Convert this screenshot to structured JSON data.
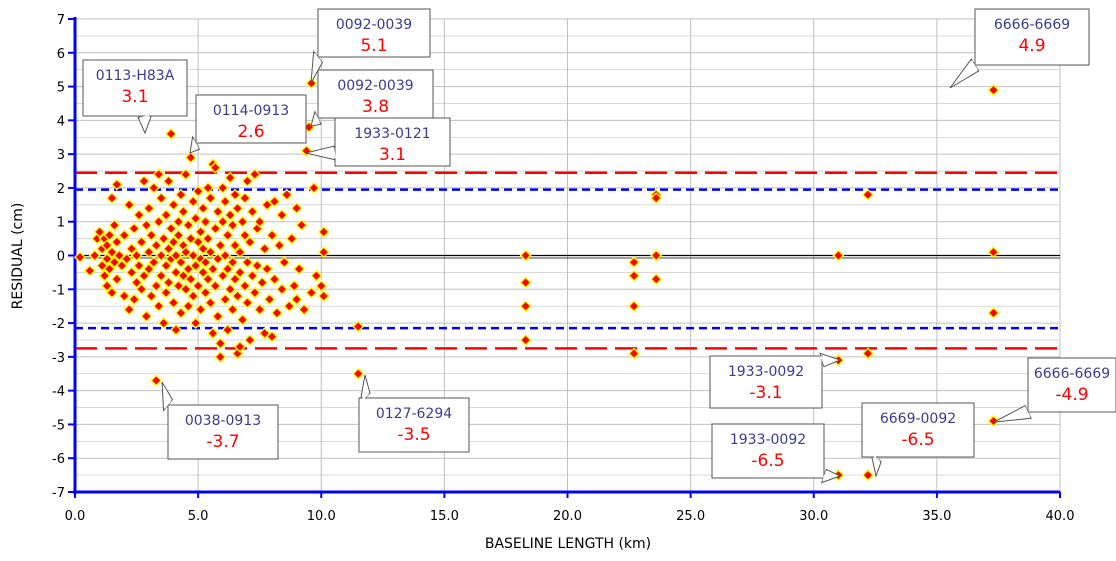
{
  "chart_data": {
    "type": "scatter",
    "xlabel": "BASELINE LENGTH (km)",
    "ylabel": "RESIDUAL (cm)",
    "xlim": [
      0,
      40
    ],
    "ylim": [
      -7,
      7
    ],
    "xticks": [
      "0.0",
      "5.0",
      "10.0",
      "15.0",
      "20.0",
      "25.0",
      "30.0",
      "35.0",
      "40.0"
    ],
    "yticks": [
      "7",
      "6",
      "5",
      "4",
      "3",
      "2",
      "1",
      "0",
      "-1",
      "-2",
      "-3",
      "-4",
      "-5",
      "-6",
      "-7"
    ],
    "grid": true,
    "colors": {
      "marker_fill": "#ff0000",
      "marker_edge": "#ffff00",
      "axis": "#0000ff",
      "red_band": "#ff0000",
      "blue_band": "#0000ff",
      "zero_line": "#000000",
      "grid": "#c0c0c0"
    },
    "reference_lines": [
      {
        "y": 2.45,
        "style": "long-dash",
        "color": "#ff0000"
      },
      {
        "y": -2.75,
        "style": "long-dash",
        "color": "#ff0000"
      },
      {
        "y": 1.95,
        "style": "short-dash",
        "color": "#0000ff"
      },
      {
        "y": -2.15,
        "style": "short-dash",
        "color": "#0000ff"
      },
      {
        "y": 0,
        "style": "solid",
        "color": "#000000"
      }
    ],
    "points": [
      [
        0.2,
        -0.05
      ],
      [
        0.6,
        -0.45
      ],
      [
        0.8,
        0.0
      ],
      [
        0.9,
        0.5
      ],
      [
        1.0,
        0.7
      ],
      [
        1.1,
        0.2
      ],
      [
        1.1,
        -0.3
      ],
      [
        1.2,
        0.5
      ],
      [
        1.2,
        -0.6
      ],
      [
        1.3,
        0.3
      ],
      [
        1.3,
        -0.1
      ],
      [
        1.3,
        -0.9
      ],
      [
        1.4,
        0.6
      ],
      [
        1.4,
        -0.4
      ],
      [
        1.5,
        1.7
      ],
      [
        1.5,
        0.1
      ],
      [
        1.5,
        -1.1
      ],
      [
        1.6,
        0.9
      ],
      [
        1.6,
        -0.2
      ],
      [
        1.7,
        2.1
      ],
      [
        1.7,
        0.4
      ],
      [
        1.7,
        -0.7
      ],
      [
        1.8,
        0.0
      ],
      [
        1.9,
        -0.3
      ],
      [
        2.0,
        -1.2
      ],
      [
        2.0,
        0.6
      ],
      [
        2.1,
        -0.1
      ],
      [
        2.2,
        1.5
      ],
      [
        2.2,
        -1.6
      ],
      [
        2.3,
        0.2
      ],
      [
        2.3,
        -0.5
      ],
      [
        2.4,
        -1.3
      ],
      [
        2.4,
        0.8
      ],
      [
        2.5,
        0.0
      ],
      [
        2.5,
        -0.8
      ],
      [
        2.6,
        1.2
      ],
      [
        2.6,
        -0.3
      ],
      [
        2.7,
        -1.0
      ],
      [
        2.7,
        0.4
      ],
      [
        2.8,
        -0.6
      ],
      [
        2.8,
        2.2
      ],
      [
        2.9,
        0.9
      ],
      [
        2.9,
        -1.8
      ],
      [
        3.0,
        0.1
      ],
      [
        3.0,
        -0.4
      ],
      [
        3.0,
        1.4
      ],
      [
        3.1,
        -1.2
      ],
      [
        3.1,
        0.6
      ],
      [
        3.2,
        -0.2
      ],
      [
        3.2,
        2.0
      ],
      [
        3.3,
        -0.9
      ],
      [
        3.3,
        0.3
      ],
      [
        3.3,
        -3.7
      ],
      [
        3.4,
        1.0
      ],
      [
        3.4,
        -1.5
      ],
      [
        3.4,
        2.4
      ],
      [
        3.5,
        0.0
      ],
      [
        3.5,
        -0.6
      ],
      [
        3.5,
        1.7
      ],
      [
        3.6,
        -2.0
      ],
      [
        3.6,
        0.5
      ],
      [
        3.7,
        -0.3
      ],
      [
        3.7,
        1.2
      ],
      [
        3.7,
        -1.1
      ],
      [
        3.8,
        0.2
      ],
      [
        3.8,
        -0.8
      ],
      [
        3.8,
        2.2
      ],
      [
        3.9,
        3.6
      ],
      [
        3.9,
        -0.1
      ],
      [
        3.9,
        0.8
      ],
      [
        4.0,
        -1.4
      ],
      [
        4.0,
        0.4
      ],
      [
        4.0,
        1.5
      ],
      [
        4.1,
        -0.5
      ],
      [
        4.1,
        -2.2
      ],
      [
        4.1,
        0.0
      ],
      [
        4.2,
        1.0
      ],
      [
        4.2,
        -0.9
      ],
      [
        4.2,
        0.6
      ],
      [
        4.3,
        -0.2
      ],
      [
        4.3,
        1.8
      ],
      [
        4.3,
        -1.7
      ],
      [
        4.4,
        0.3
      ],
      [
        4.4,
        -0.6
      ],
      [
        4.4,
        1.3
      ],
      [
        4.5,
        -1.0
      ],
      [
        4.5,
        0.1
      ],
      [
        4.5,
        2.4
      ],
      [
        4.6,
        -0.4
      ],
      [
        4.6,
        0.9
      ],
      [
        4.6,
        -1.5
      ],
      [
        4.7,
        2.9
      ],
      [
        4.7,
        0.5
      ],
      [
        4.7,
        -0.7
      ],
      [
        4.8,
        1.6
      ],
      [
        4.8,
        -1.2
      ],
      [
        4.8,
        0.0
      ],
      [
        4.9,
        -0.3
      ],
      [
        4.9,
        1.1
      ],
      [
        4.9,
        -2.0
      ],
      [
        5.0,
        0.4
      ],
      [
        5.0,
        -0.9
      ],
      [
        5.0,
        1.9
      ],
      [
        5.1,
        -0.1
      ],
      [
        5.1,
        0.7
      ],
      [
        5.1,
        -1.6
      ],
      [
        5.2,
        1.4
      ],
      [
        5.2,
        -0.5
      ],
      [
        5.2,
        0.2
      ],
      [
        5.3,
        -1.1
      ],
      [
        5.3,
        1.0
      ],
      [
        5.3,
        -0.2
      ],
      [
        5.4,
        2.0
      ],
      [
        5.4,
        -0.7
      ],
      [
        5.4,
        0.5
      ],
      [
        5.5,
        -1.4
      ],
      [
        5.5,
        0.1
      ],
      [
        5.5,
        1.7
      ],
      [
        5.6,
        2.7
      ],
      [
        5.6,
        -0.4
      ],
      [
        5.6,
        -2.3
      ],
      [
        5.7,
        0.8
      ],
      [
        5.7,
        -0.9
      ],
      [
        5.7,
        2.6
      ],
      [
        5.8,
        -0.1
      ],
      [
        5.8,
        1.3
      ],
      [
        5.8,
        -1.8
      ],
      [
        5.9,
        0.3
      ],
      [
        5.9,
        -2.6
      ],
      [
        5.9,
        -3.0
      ],
      [
        6.0,
        1.0
      ],
      [
        6.0,
        -0.6
      ],
      [
        6.0,
        2.0
      ],
      [
        6.1,
        -1.3
      ],
      [
        6.1,
        0.0
      ],
      [
        6.1,
        1.6
      ],
      [
        6.2,
        -0.4
      ],
      [
        6.2,
        0.6
      ],
      [
        6.2,
        -2.2
      ],
      [
        6.3,
        1.2
      ],
      [
        6.3,
        -1.0
      ],
      [
        6.3,
        2.3
      ],
      [
        6.4,
        -0.2
      ],
      [
        6.4,
        0.9
      ],
      [
        6.4,
        -1.6
      ],
      [
        6.5,
        1.8
      ],
      [
        6.5,
        -0.7
      ],
      [
        6.5,
        0.3
      ],
      [
        6.6,
        -2.9
      ],
      [
        6.6,
        -1.2
      ],
      [
        6.6,
        1.4
      ],
      [
        6.7,
        0.1
      ],
      [
        6.7,
        -0.5
      ],
      [
        6.7,
        -2.7
      ],
      [
        6.8,
        1.0
      ],
      [
        6.8,
        -1.9
      ],
      [
        6.9,
        0.6
      ],
      [
        6.9,
        -0.9
      ],
      [
        6.9,
        1.7
      ],
      [
        7.0,
        -0.2
      ],
      [
        7.0,
        2.2
      ],
      [
        7.0,
        -1.4
      ],
      [
        7.1,
        0.4
      ],
      [
        7.1,
        -2.5
      ],
      [
        7.2,
        1.3
      ],
      [
        7.2,
        -0.6
      ],
      [
        7.3,
        2.4
      ],
      [
        7.3,
        -1.1
      ],
      [
        7.4,
        0.8
      ],
      [
        7.4,
        -0.3
      ],
      [
        7.5,
        -1.6
      ],
      [
        7.5,
        1.0
      ],
      [
        7.6,
        -0.8
      ],
      [
        7.7,
        0.2
      ],
      [
        7.7,
        -2.3
      ],
      [
        7.8,
        1.5
      ],
      [
        7.8,
        -0.4
      ],
      [
        7.9,
        -1.3
      ],
      [
        8.0,
        0.6
      ],
      [
        8.0,
        -2.4
      ],
      [
        8.1,
        1.6
      ],
      [
        8.1,
        -0.7
      ],
      [
        8.2,
        -1.7
      ],
      [
        8.3,
        0.3
      ],
      [
        8.4,
        1.2
      ],
      [
        8.4,
        -1.0
      ],
      [
        8.5,
        -0.2
      ],
      [
        8.6,
        1.8
      ],
      [
        8.7,
        -1.5
      ],
      [
        8.8,
        0.5
      ],
      [
        8.9,
        -0.9
      ],
      [
        9.0,
        1.4
      ],
      [
        9.0,
        -1.3
      ],
      [
        9.1,
        -0.4
      ],
      [
        9.2,
        0.9
      ],
      [
        9.3,
        -1.6
      ],
      [
        9.5,
        3.8
      ],
      [
        9.6,
        5.1
      ],
      [
        9.4,
        3.1
      ],
      [
        9.6,
        -1.1
      ],
      [
        9.7,
        2.0
      ],
      [
        9.8,
        -0.6
      ],
      [
        10.1,
        0.7
      ],
      [
        10.1,
        0.1
      ],
      [
        10.0,
        -0.9
      ],
      [
        10.1,
        -1.2
      ],
      [
        11.5,
        -2.1
      ],
      [
        11.5,
        -3.5
      ],
      [
        18.3,
        0.0
      ],
      [
        18.3,
        -0.8
      ],
      [
        18.3,
        -1.5
      ],
      [
        18.3,
        -2.5
      ],
      [
        22.7,
        -0.2
      ],
      [
        22.7,
        -0.6
      ],
      [
        22.7,
        -1.5
      ],
      [
        22.7,
        -2.9
      ],
      [
        23.6,
        1.8
      ],
      [
        23.6,
        1.7
      ],
      [
        23.6,
        0.0
      ],
      [
        23.6,
        -0.7
      ],
      [
        31.0,
        0.0
      ],
      [
        31.0,
        -3.1
      ],
      [
        31.0,
        -6.5
      ],
      [
        32.2,
        1.8
      ],
      [
        32.2,
        -2.9
      ],
      [
        32.2,
        -6.5
      ],
      [
        37.3,
        4.9
      ],
      [
        37.3,
        0.1
      ],
      [
        37.3,
        -1.7
      ],
      [
        37.3,
        -4.9
      ]
    ],
    "annotations": [
      {
        "label": "0113-H83A",
        "value": "3.1"
      },
      {
        "label": "0114-0913",
        "value": "2.6"
      },
      {
        "label": "0092-0039",
        "value": "5.1"
      },
      {
        "label": "0092-0039",
        "value": "3.8"
      },
      {
        "label": "1933-0121",
        "value": "3.1"
      },
      {
        "label": "6666-6669",
        "value": "4.9"
      },
      {
        "label": "0038-0913",
        "value": "-3.7"
      },
      {
        "label": "0127-6294",
        "value": "-3.5"
      },
      {
        "label": "1933-0092",
        "value": "-3.1"
      },
      {
        "label": "1933-0092",
        "value": "-6.5"
      },
      {
        "label": "6669-0092",
        "value": "-6.5"
      },
      {
        "label": "6666-6669",
        "value": "-4.9"
      }
    ]
  }
}
